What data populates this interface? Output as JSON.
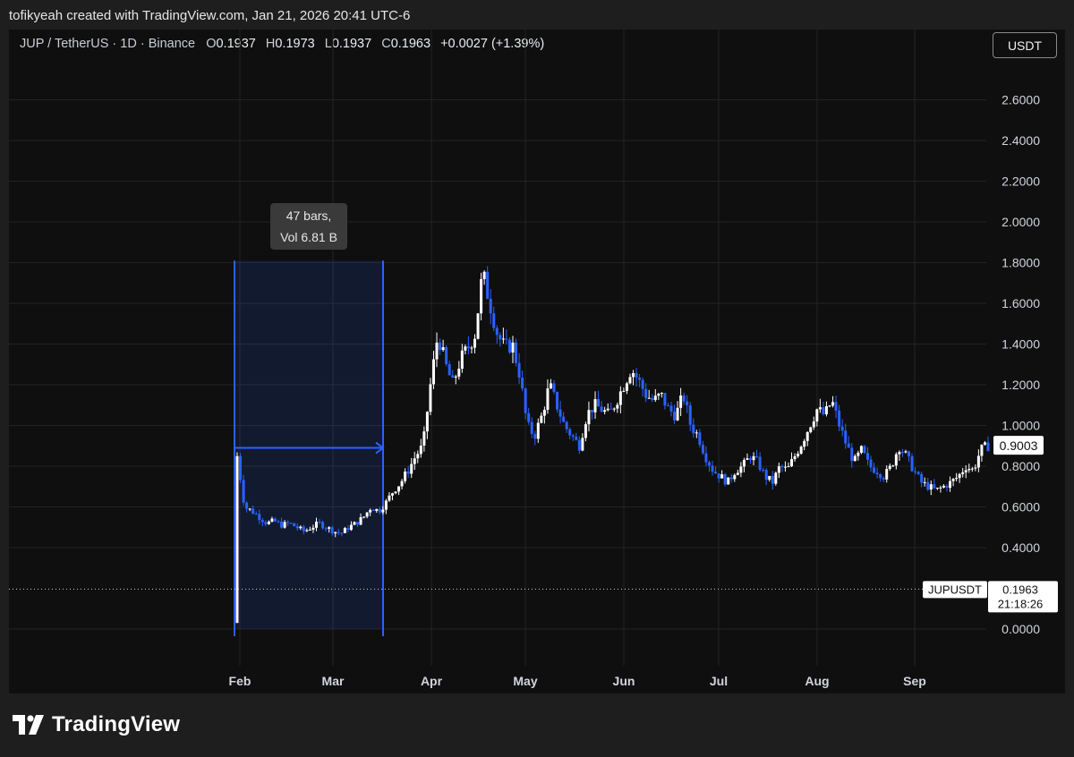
{
  "caption": "tofikyeah created with TradingView.com, Jan 21, 2026 20:41 UTC-6",
  "legend": {
    "symbol": "JUP / TetherUS · 1D · Binance",
    "open_label": "O",
    "open": "0.1937",
    "high_label": "H",
    "high": "0.1973",
    "low_label": "L",
    "low": "0.1937",
    "close_label": "C",
    "close": "0.1963",
    "change": "+0.0027 (+1.39%)"
  },
  "currency_button": "USDT",
  "brand": "TradingView",
  "colors": {
    "background": "#0f0f0f",
    "up": "#ffffff",
    "down": "#2962ff",
    "range_box": "#2962ff"
  },
  "chart_data": {
    "type": "candlestick",
    "y_axis": {
      "ylim": [
        0,
        2.7
      ],
      "ticks": [
        "0.0000",
        "0.4000",
        "0.6000",
        "0.8000",
        "1.0000",
        "1.2000",
        "1.4000",
        "1.6000",
        "1.8000",
        "2.0000",
        "2.2000",
        "2.4000",
        "2.6000"
      ]
    },
    "x_axis": {
      "ticks": [
        "Feb",
        "Mar",
        "Apr",
        "May",
        "Jun",
        "Jul",
        "Aug",
        "Sep"
      ]
    },
    "last_price_label": "0.9003",
    "current": {
      "symbol": "JUPUSDT",
      "price": "0.1963",
      "countdown": "21:18:26"
    },
    "date_range_measure": {
      "bars_text": "47 bars,",
      "vol_text": "Vol 6.81 B",
      "low": 0.0,
      "high": 1.81,
      "mid": 0.89
    },
    "approx_close_path": [
      0.85,
      0.6,
      0.58,
      0.55,
      0.52,
      0.53,
      0.51,
      0.52,
      0.5,
      0.48,
      0.5,
      0.52,
      0.5,
      0.48,
      0.47,
      0.5,
      0.52,
      0.55,
      0.6,
      0.58,
      0.62,
      0.68,
      0.72,
      0.78,
      0.85,
      0.9,
      1.2,
      1.45,
      1.3,
      1.2,
      1.32,
      1.38,
      1.45,
      1.75,
      1.6,
      1.45,
      1.38,
      1.4,
      1.25,
      1.0,
      0.95,
      1.05,
      1.2,
      1.1,
      1.0,
      0.95,
      0.9,
      1.05,
      1.1,
      1.08,
      1.05,
      1.12,
      1.2,
      1.28,
      1.22,
      1.15,
      1.12,
      1.15,
      1.08,
      1.05,
      1.15,
      1.0,
      0.95,
      0.85,
      0.78,
      0.75,
      0.72,
      0.78,
      0.8,
      0.85,
      0.82,
      0.75,
      0.72,
      0.8,
      0.78,
      0.85,
      0.92,
      1.0,
      1.08,
      1.05,
      1.12,
      1.0,
      0.9,
      0.82,
      0.88,
      0.8,
      0.78,
      0.75,
      0.8,
      0.9,
      0.85,
      0.78,
      0.72,
      0.7,
      0.68,
      0.7,
      0.72,
      0.75,
      0.8,
      0.78,
      0.88,
      0.9
    ]
  }
}
